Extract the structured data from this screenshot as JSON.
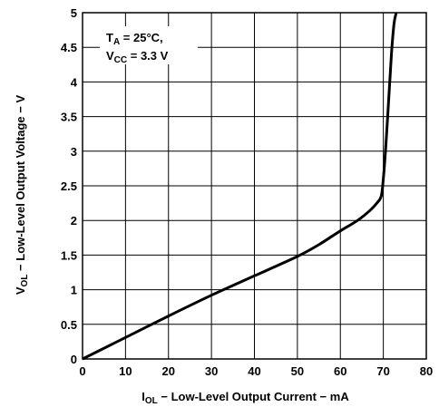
{
  "chart_data": {
    "type": "line",
    "grid": true,
    "xlim": [
      0,
      80
    ],
    "ylim": [
      0,
      5
    ],
    "xticks": [
      "0",
      "10",
      "20",
      "30",
      "40",
      "50",
      "60",
      "70",
      "80"
    ],
    "yticks": [
      "0",
      "0.5",
      "1",
      "1.5",
      "2",
      "2.5",
      "3",
      "3.5",
      "4",
      "4.5",
      "5"
    ],
    "xlabel": {
      "prefix": "I",
      "sub": "OL",
      "rest": " − Low-Level Output Current − mA"
    },
    "ylabel": {
      "prefix": "V",
      "sub": "OL",
      "rest": " − Low-Level Output Voltage − V"
    },
    "annotation": {
      "line1": {
        "prefix": "T",
        "sub": "A",
        "rest": " = 25°C,"
      },
      "line2": {
        "prefix": "V",
        "sub": "CC",
        "rest": " = 3.3 V"
      }
    },
    "series": [
      {
        "x": [
          0,
          10,
          20,
          30,
          40,
          50,
          55,
          60,
          64,
          67,
          68.5,
          69.5,
          70,
          70.5,
          71,
          71.5,
          72,
          72.5,
          73
        ],
        "y": [
          0,
          0.31,
          0.62,
          0.92,
          1.2,
          1.48,
          1.65,
          1.85,
          2.0,
          2.15,
          2.25,
          2.35,
          2.6,
          3.0,
          3.5,
          4.0,
          4.5,
          4.85,
          5.0
        ]
      }
    ]
  }
}
